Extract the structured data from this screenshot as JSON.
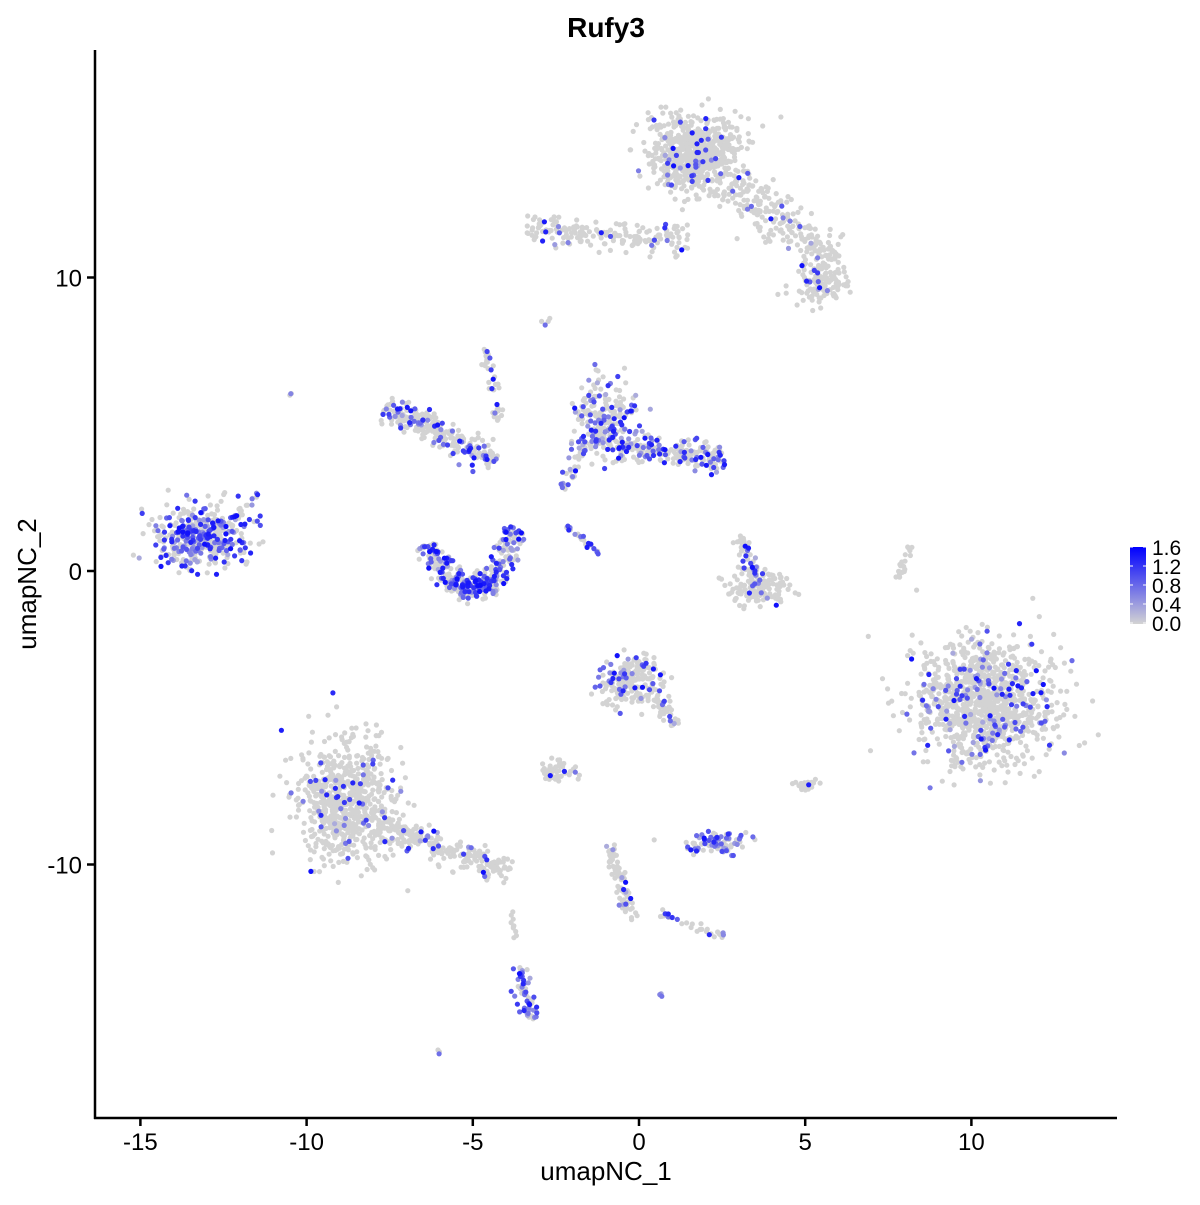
{
  "chart_data": {
    "type": "scatter",
    "title": "Rufy3",
    "xlabel": "umapNC_1",
    "ylabel": "umapNC_2",
    "xlim": [
      -16.5,
      14.2
    ],
    "ylim": [
      -18.5,
      17.7
    ],
    "xticks": [
      -15,
      -10,
      -5,
      0,
      5,
      10
    ],
    "yticks": [
      -10,
      0,
      10
    ],
    "grid": false,
    "legend": {
      "position": "right",
      "ticks": [
        "0.0",
        "0.4",
        "0.8",
        "1.2",
        "1.6"
      ],
      "range": [
        0,
        1.6
      ],
      "low_color": "#d3d3d3",
      "high_color": "#0000ff"
    },
    "clusters": [
      {
        "kind": "blob",
        "center": [
          1.7,
          14.2
        ],
        "spread": [
          0.75,
          0.7
        ],
        "n": 700,
        "expressing": 0.06
      },
      {
        "kind": "strand",
        "from": [
          2.8,
          13.2
        ],
        "to": [
          5.8,
          10.6
        ],
        "width": 0.7,
        "n": 220,
        "expressing": 0.05
      },
      {
        "kind": "blob",
        "center": [
          5.5,
          9.8
        ],
        "spread": [
          0.5,
          0.4
        ],
        "n": 120,
        "expressing": 0.05
      },
      {
        "kind": "strand",
        "from": [
          -3.4,
          11.6
        ],
        "to": [
          1.5,
          11.3
        ],
        "width": 0.5,
        "n": 180,
        "expressing": 0.06
      },
      {
        "kind": "blob",
        "center": [
          -13.2,
          1.2
        ],
        "spread": [
          0.8,
          0.55
        ],
        "n": 420,
        "expressing": 0.45
      },
      {
        "kind": "strand",
        "from": [
          -6.4,
          0.9
        ],
        "to": [
          -5.5,
          -0.6
        ],
        "width": 0.35,
        "n": 120,
        "expressing": 0.5
      },
      {
        "kind": "strand",
        "from": [
          -5.5,
          -0.6
        ],
        "to": [
          -4.3,
          -0.4
        ],
        "width": 0.4,
        "n": 150,
        "expressing": 0.5
      },
      {
        "kind": "strand",
        "from": [
          -4.3,
          -0.4
        ],
        "to": [
          -3.7,
          1.5
        ],
        "width": 0.35,
        "n": 110,
        "expressing": 0.45
      },
      {
        "kind": "strand",
        "from": [
          -7.6,
          5.6
        ],
        "to": [
          -4.3,
          3.8
        ],
        "width": 0.45,
        "n": 260,
        "expressing": 0.25
      },
      {
        "kind": "strand",
        "from": [
          -4.6,
          7.6
        ],
        "to": [
          -4.2,
          5.0
        ],
        "width": 0.15,
        "n": 40,
        "expressing": 0.3
      },
      {
        "kind": "blob",
        "center": [
          -1.0,
          5.1
        ],
        "spread": [
          0.5,
          0.75
        ],
        "n": 220,
        "expressing": 0.35
      },
      {
        "kind": "strand",
        "from": [
          -0.6,
          4.3
        ],
        "to": [
          2.6,
          3.8
        ],
        "width": 0.45,
        "n": 220,
        "expressing": 0.3
      },
      {
        "kind": "strand",
        "from": [
          -2.3,
          2.8
        ],
        "to": [
          -1.5,
          4.5
        ],
        "width": 0.2,
        "n": 30,
        "expressing": 0.5
      },
      {
        "kind": "strand",
        "from": [
          -2.2,
          1.5
        ],
        "to": [
          -1.2,
          0.6
        ],
        "width": 0.1,
        "n": 25,
        "expressing": 0.6
      },
      {
        "kind": "strand",
        "from": [
          3.0,
          1.2
        ],
        "to": [
          3.5,
          -0.3
        ],
        "width": 0.25,
        "n": 50,
        "expressing": 0.3
      },
      {
        "kind": "blob",
        "center": [
          3.6,
          -0.6
        ],
        "spread": [
          0.55,
          0.3
        ],
        "n": 130,
        "expressing": 0.08
      },
      {
        "kind": "strand",
        "from": [
          7.8,
          -0.3
        ],
        "to": [
          8.2,
          1.0
        ],
        "width": 0.1,
        "n": 20,
        "expressing": 0.0
      },
      {
        "kind": "blob",
        "center": [
          10.4,
          -4.5
        ],
        "spread": [
          1.15,
          1.2
        ],
        "n": 1100,
        "expressing": 0.1
      },
      {
        "kind": "blob",
        "center": [
          -8.8,
          -7.9
        ],
        "spread": [
          0.8,
          1.1
        ],
        "n": 700,
        "expressing": 0.06
      },
      {
        "kind": "strand",
        "from": [
          -7.9,
          -8.6
        ],
        "to": [
          -3.9,
          -10.3
        ],
        "width": 0.45,
        "n": 240,
        "expressing": 0.06
      },
      {
        "kind": "blob",
        "center": [
          -0.2,
          -3.8
        ],
        "spread": [
          0.55,
          0.5
        ],
        "n": 200,
        "expressing": 0.15
      },
      {
        "kind": "strand",
        "from": [
          0.4,
          -4.1
        ],
        "to": [
          1.2,
          -5.5
        ],
        "width": 0.2,
        "n": 40,
        "expressing": 0.2
      },
      {
        "kind": "blob",
        "center": [
          -2.4,
          -6.8
        ],
        "spread": [
          0.3,
          0.2
        ],
        "n": 50,
        "expressing": 0.15
      },
      {
        "kind": "blob",
        "center": [
          2.4,
          -9.3
        ],
        "spread": [
          0.45,
          0.2
        ],
        "n": 90,
        "expressing": 0.5
      },
      {
        "kind": "strand",
        "from": [
          -0.9,
          -9.3
        ],
        "to": [
          -0.2,
          -11.9
        ],
        "width": 0.2,
        "n": 80,
        "expressing": 0.1
      },
      {
        "kind": "strand",
        "from": [
          0.6,
          -11.6
        ],
        "to": [
          2.6,
          -12.6
        ],
        "width": 0.2,
        "n": 30,
        "expressing": 0.15
      },
      {
        "kind": "strand",
        "from": [
          -3.6,
          -13.5
        ],
        "to": [
          -3.3,
          -15.3
        ],
        "width": 0.25,
        "n": 60,
        "expressing": 0.6
      },
      {
        "kind": "strand",
        "from": [
          -3.8,
          -11.6
        ],
        "to": [
          -3.7,
          -12.6
        ],
        "width": 0.08,
        "n": 10,
        "expressing": 0.0
      },
      {
        "kind": "blob",
        "center": [
          5.0,
          -7.3
        ],
        "spread": [
          0.25,
          0.15
        ],
        "n": 25,
        "expressing": 0.1
      },
      {
        "kind": "blob",
        "center": [
          -10.5,
          6.0
        ],
        "spread": [
          0.05,
          0.05
        ],
        "n": 3,
        "expressing": 0.3
      },
      {
        "kind": "strand",
        "from": [
          -12.3,
          1.7
        ],
        "to": [
          -11.4,
          2.7
        ],
        "width": 0.1,
        "n": 15,
        "expressing": 0.4
      },
      {
        "kind": "blob",
        "center": [
          -6.0,
          -16.3
        ],
        "spread": [
          0.05,
          0.05
        ],
        "n": 3,
        "expressing": 0.3
      },
      {
        "kind": "blob",
        "center": [
          0.6,
          -14.4
        ],
        "spread": [
          0.05,
          0.05
        ],
        "n": 3,
        "expressing": 0.8
      },
      {
        "kind": "blob",
        "center": [
          -2.8,
          8.5
        ],
        "spread": [
          0.1,
          0.1
        ],
        "n": 4,
        "expressing": 0.3
      }
    ]
  }
}
